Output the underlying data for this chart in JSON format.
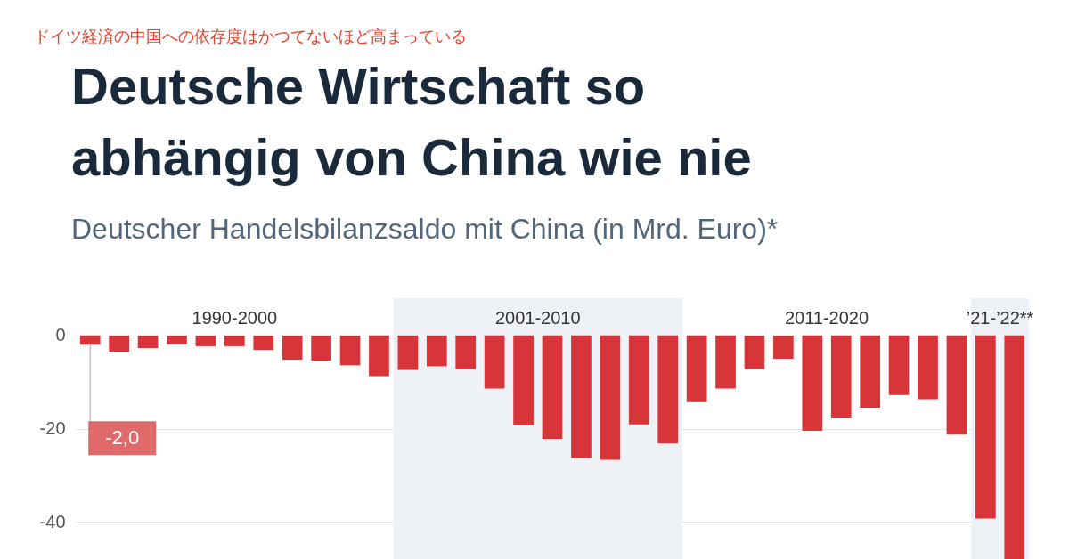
{
  "chart_data": {
    "type": "bar",
    "title": "Deutsche Wirtschaft so abhängig von China wie nie",
    "subtitle": "Deutscher Handelsbilanzsaldo mit China (in Mrd. Euro)*",
    "annotations": [
      "ドイツ経済の中国への依存度はかつてないほど高まっている",
      "1990-2000",
      "2001-2010",
      "2011-2020",
      "’21-’22**"
    ],
    "categories": [
      null,
      null,
      null,
      null,
      null,
      null,
      null,
      null,
      null,
      null,
      null,
      null,
      null,
      null,
      null,
      null,
      null,
      null,
      null,
      null,
      null,
      null,
      null,
      null,
      null,
      null,
      null,
      null,
      null,
      null,
      null,
      null,
      null
    ],
    "series": [
      {
        "color": "#d8353b",
        "values": [
          -2.0,
          -3.5,
          -2.7,
          -1.9,
          -2.3,
          -2.3,
          -3.1,
          -5.2,
          -5.4,
          -6.4,
          -8.7,
          -7.4,
          -6.6,
          -7.2,
          -11.4,
          -19.3,
          -22.2,
          -26.3,
          -26.7,
          -19.1,
          -23.2,
          -14.3,
          -11.4,
          -7.2,
          -5.0,
          -20.5,
          -17.8,
          -15.5,
          -12.8,
          -13.7,
          -21.3,
          -39.3,
          -48
        ],
        "value_labels": [
          "-2,0",
          null,
          null,
          null,
          null,
          null,
          null,
          null,
          null,
          null,
          null,
          null,
          null,
          null,
          null,
          null,
          null,
          null,
          null,
          null,
          null,
          null,
          null,
          null,
          null,
          null,
          null,
          null,
          null,
          null,
          null,
          null,
          null
        ]
      }
    ],
    "ylim": [
      -48,
      8
    ],
    "yticks": [
      0,
      -20,
      -40
    ],
    "tick_labels": "y",
    "grid": "y"
  }
}
